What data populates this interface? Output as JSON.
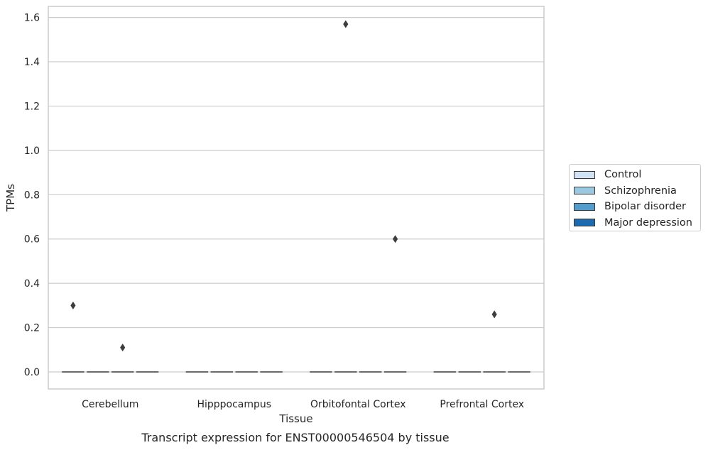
{
  "chart_data": {
    "type": "box",
    "title": "",
    "caption": "Transcript expression for ENST00000546504 by tissue",
    "xlabel": "Tissue",
    "ylabel": "TPMs",
    "ylim": [
      -0.08,
      1.65
    ],
    "yticks": [
      0.0,
      0.2,
      0.4,
      0.6,
      0.8,
      1.0,
      1.2,
      1.4,
      1.6
    ],
    "ytick_labels": [
      "0.0",
      "0.2",
      "0.4",
      "0.6",
      "0.8",
      "1.0",
      "1.2",
      "1.4",
      "1.6"
    ],
    "grid": true,
    "legend_position": "right",
    "categories": [
      "Cerebellum",
      "Hipppocampus",
      "Orbitofontal Cortex",
      "Prefrontal Cortex"
    ],
    "series": [
      {
        "name": "Control",
        "color": "#d1e2f2",
        "median": [
          0,
          0,
          0,
          0
        ],
        "outliers": [
          [
            0.3
          ],
          [],
          [],
          []
        ]
      },
      {
        "name": "Schizophrenia",
        "color": "#9ac8e0",
        "median": [
          0,
          0,
          0,
          0
        ],
        "outliers": [
          [],
          [],
          [
            1.57
          ],
          []
        ]
      },
      {
        "name": "Bipolar disorder",
        "color": "#529dcc",
        "median": [
          0,
          0,
          0,
          0
        ],
        "outliers": [
          [
            0.11
          ],
          [],
          [],
          [
            0.26
          ]
        ]
      },
      {
        "name": "Major depression",
        "color": "#1c6aaf",
        "median": [
          0,
          0,
          0,
          0
        ],
        "outliers": [
          [],
          [],
          [
            0.6
          ],
          []
        ]
      }
    ]
  }
}
